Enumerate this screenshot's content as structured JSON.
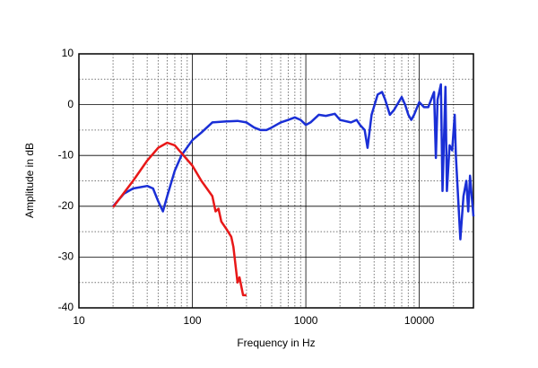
{
  "chart_data": {
    "type": "line",
    "x_label": "Frequency in Hz",
    "y_label": "Amplitude in dB",
    "xscale": "log",
    "xlim": [
      10,
      30000
    ],
    "ylim": [
      -40,
      10
    ],
    "xticks": [
      10,
      100,
      1000,
      10000
    ],
    "yticks": [
      10,
      0,
      -10,
      -20,
      -30,
      -40
    ],
    "xminor": [
      20,
      30,
      40,
      50,
      60,
      70,
      80,
      90,
      200,
      300,
      400,
      500,
      600,
      700,
      800,
      900,
      2000,
      3000,
      4000,
      5000,
      6000,
      7000,
      8000,
      9000,
      20000
    ],
    "yminor": [
      5,
      -5,
      -15,
      -25,
      -35
    ],
    "grid": true,
    "series": [
      {
        "color": "#1a2fd6",
        "x": [
          20,
          25,
          30,
          40,
          45,
          50,
          55,
          60,
          70,
          80,
          100,
          120,
          150,
          200,
          250,
          300,
          350,
          400,
          450,
          500,
          600,
          700,
          800,
          900,
          1000,
          1100,
          1300,
          1500,
          1800,
          2000,
          2500,
          2800,
          3000,
          3300,
          3500,
          3800,
          4300,
          4700,
          5000,
          5500,
          6000,
          7000,
          7500,
          8000,
          8500,
          9000,
          10000,
          11000,
          12000,
          13500,
          14000,
          14500,
          15500,
          16000,
          17000,
          17500,
          18500,
          19500,
          20500,
          21000,
          23000,
          24500,
          26000,
          27000,
          28000,
          30000
        ],
        "values": [
          -20,
          -17.5,
          -16.5,
          -16,
          -16.5,
          -19,
          -21,
          -18,
          -13,
          -10,
          -7,
          -5.5,
          -3.5,
          -3.3,
          -3.2,
          -3.5,
          -4.5,
          -5,
          -5,
          -4.5,
          -3.5,
          -3,
          -2.5,
          -3,
          -4,
          -3.5,
          -2,
          -2.2,
          -1.8,
          -3,
          -3.5,
          -3,
          -4,
          -5,
          -8.5,
          -2,
          2,
          2.5,
          1,
          -2,
          -1,
          1.5,
          0,
          -2,
          -3,
          -2,
          0.5,
          -0.5,
          -0.5,
          2.5,
          -10.5,
          1,
          4,
          -17,
          3.5,
          -17,
          -8,
          -9,
          -2,
          -10,
          -26.5,
          -18,
          -15,
          -21,
          -14,
          -22
        ]
      },
      {
        "color": "#e81818",
        "x": [
          20,
          30,
          40,
          50,
          60,
          70,
          80,
          100,
          120,
          150,
          160,
          170,
          180,
          200,
          220,
          230,
          250,
          260,
          280,
          300
        ],
        "values": [
          -20.2,
          -15,
          -11,
          -8.5,
          -7.5,
          -8,
          -9.5,
          -12,
          -15,
          -18,
          -21,
          -20.5,
          -23,
          -24.5,
          -26,
          -28,
          -35,
          -34,
          -37.5,
          -37.5
        ]
      }
    ]
  }
}
